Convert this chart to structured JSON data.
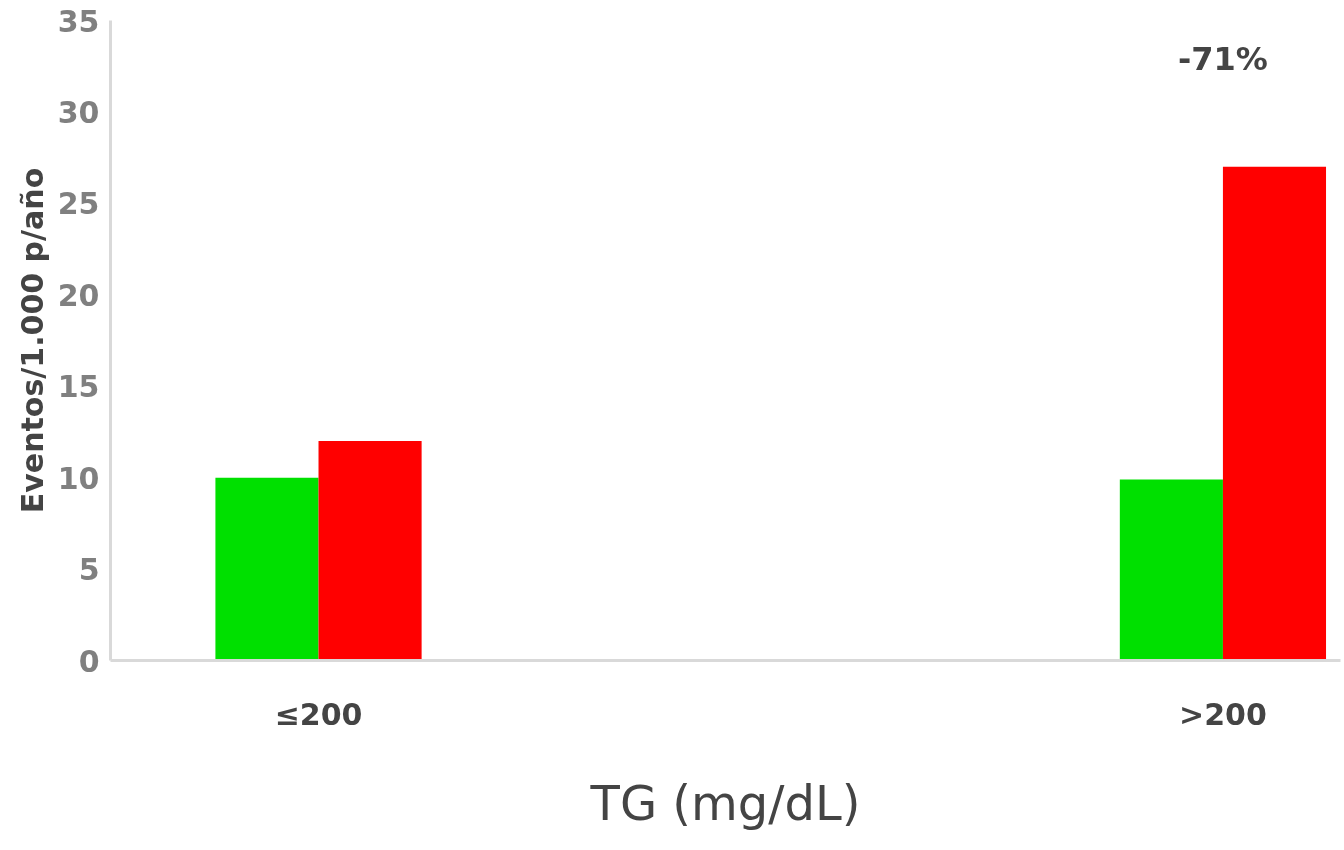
{
  "chart_data": {
    "type": "bar",
    "xlabel": "TG (mg/dL)",
    "ylabel": "Eventos/1.000 p/año",
    "categories": [
      "≤200",
      ">200"
    ],
    "series": [
      {
        "color": "#00e000",
        "values": [
          10,
          9.9
        ]
      },
      {
        "color": "#ff0000",
        "values": [
          12,
          27
        ]
      }
    ],
    "ylim": [
      0,
      35
    ],
    "yticks": [
      0,
      5,
      10,
      15,
      20,
      25,
      30,
      35
    ],
    "grid": false,
    "annotations": [
      "-71%"
    ]
  }
}
